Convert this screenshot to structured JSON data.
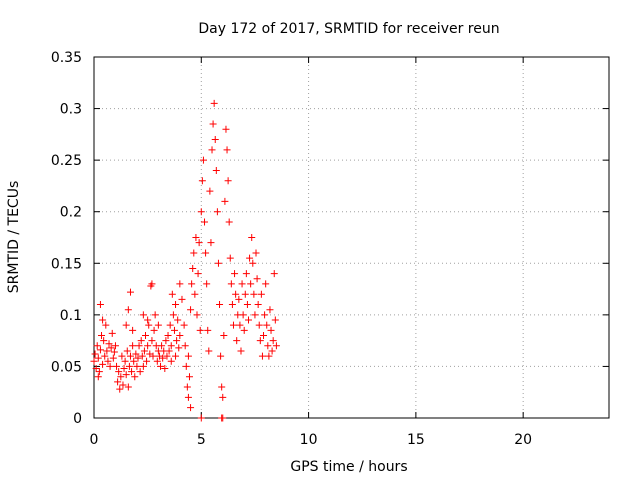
{
  "chart_data": {
    "type": "scatter",
    "title": "Day 172 of 2017, SRMTID for receiver reun",
    "xlabel": "GPS time / hours",
    "ylabel": "SRMTID / TECUs",
    "xlim": [
      0,
      24
    ],
    "ylim": [
      0,
      0.35
    ],
    "xticks": [
      0,
      5,
      10,
      15,
      20
    ],
    "yticks": [
      0,
      0.05,
      0.1,
      0.15,
      0.2,
      0.25,
      0.3,
      0.35
    ],
    "xtick_labels": [
      "0",
      "5",
      "10",
      "15",
      "20"
    ],
    "ytick_labels": [
      "0",
      "0.05",
      "0.1",
      "0.15",
      "0.2",
      "0.25",
      "0.3",
      "0.35"
    ],
    "grid": true,
    "marker": "+",
    "marker_color": "#ff0000",
    "series": [
      {
        "name": "SRMTID",
        "points": [
          [
            0.0,
            0.055
          ],
          [
            0.05,
            0.062
          ],
          [
            0.1,
            0.048
          ],
          [
            0.15,
            0.07
          ],
          [
            0.2,
            0.058
          ],
          [
            0.25,
            0.045
          ],
          [
            0.3,
            0.066
          ],
          [
            0.35,
            0.08
          ],
          [
            0.4,
            0.052
          ],
          [
            0.45,
            0.075
          ],
          [
            0.5,
            0.06
          ],
          [
            0.55,
            0.09
          ],
          [
            0.6,
            0.065
          ],
          [
            0.65,
            0.055
          ],
          [
            0.7,
            0.072
          ],
          [
            0.75,
            0.05
          ],
          [
            0.8,
            0.068
          ],
          [
            0.85,
            0.082
          ],
          [
            0.9,
            0.058
          ],
          [
            0.95,
            0.064
          ],
          [
            1.0,
            0.07
          ],
          [
            0.3,
            0.11
          ],
          [
            0.4,
            0.095
          ],
          [
            0.2,
            0.04
          ],
          [
            1.05,
            0.05
          ],
          [
            1.1,
            0.035
          ],
          [
            1.15,
            0.045
          ],
          [
            1.2,
            0.028
          ],
          [
            1.25,
            0.04
          ],
          [
            1.3,
            0.06
          ],
          [
            1.35,
            0.032
          ],
          [
            1.4,
            0.048
          ],
          [
            1.45,
            0.055
          ],
          [
            1.5,
            0.042
          ],
          [
            1.55,
            0.065
          ],
          [
            1.6,
            0.03
          ],
          [
            1.65,
            0.05
          ],
          [
            1.7,
            0.06
          ],
          [
            1.75,
            0.045
          ],
          [
            1.8,
            0.07
          ],
          [
            1.85,
            0.055
          ],
          [
            1.9,
            0.04
          ],
          [
            1.95,
            0.062
          ],
          [
            2.0,
            0.05
          ],
          [
            1.5,
            0.09
          ],
          [
            1.6,
            0.105
          ],
          [
            1.7,
            0.122
          ],
          [
            1.8,
            0.085
          ],
          [
            2.05,
            0.058
          ],
          [
            2.1,
            0.07
          ],
          [
            2.15,
            0.045
          ],
          [
            2.2,
            0.075
          ],
          [
            2.25,
            0.06
          ],
          [
            2.3,
            0.05
          ],
          [
            2.35,
            0.065
          ],
          [
            2.4,
            0.08
          ],
          [
            2.45,
            0.055
          ],
          [
            2.5,
            0.07
          ],
          [
            2.55,
            0.09
          ],
          [
            2.6,
            0.062
          ],
          [
            2.65,
            0.128
          ],
          [
            2.7,
            0.075
          ],
          [
            2.75,
            0.06
          ],
          [
            2.8,
            0.085
          ],
          [
            2.85,
            0.1
          ],
          [
            2.9,
            0.07
          ],
          [
            2.95,
            0.055
          ],
          [
            3.0,
            0.065
          ],
          [
            2.3,
            0.1
          ],
          [
            2.5,
            0.095
          ],
          [
            2.7,
            0.13
          ],
          [
            3.0,
            0.09
          ],
          [
            3.05,
            0.06
          ],
          [
            3.1,
            0.05
          ],
          [
            3.15,
            0.07
          ],
          [
            3.2,
            0.058
          ],
          [
            3.25,
            0.065
          ],
          [
            3.3,
            0.048
          ],
          [
            3.35,
            0.075
          ],
          [
            3.4,
            0.06
          ],
          [
            3.45,
            0.08
          ],
          [
            3.5,
            0.065
          ],
          [
            3.55,
            0.09
          ],
          [
            3.6,
            0.07
          ],
          [
            3.65,
            0.12
          ],
          [
            3.7,
            0.1
          ],
          [
            3.75,
            0.085
          ],
          [
            3.8,
            0.11
          ],
          [
            3.85,
            0.075
          ],
          [
            3.9,
            0.095
          ],
          [
            3.95,
            0.068
          ],
          [
            4.0,
            0.08
          ],
          [
            3.6,
            0.055
          ],
          [
            3.8,
            0.06
          ],
          [
            4.0,
            0.13
          ],
          [
            4.1,
            0.115
          ],
          [
            4.2,
            0.09
          ],
          [
            4.25,
            0.07
          ],
          [
            4.3,
            0.05
          ],
          [
            4.35,
            0.03
          ],
          [
            4.4,
            0.02
          ],
          [
            4.45,
            0.04
          ],
          [
            4.5,
            0.01
          ],
          [
            4.4,
            0.06
          ],
          [
            4.5,
            0.105
          ],
          [
            4.55,
            0.13
          ],
          [
            4.6,
            0.145
          ],
          [
            4.65,
            0.16
          ],
          [
            4.7,
            0.12
          ],
          [
            4.75,
            0.175
          ],
          [
            4.8,
            0.1
          ],
          [
            4.85,
            0.14
          ],
          [
            4.9,
            0.17
          ],
          [
            4.95,
            0.085
          ],
          [
            5.0,
            0.2
          ],
          [
            5.05,
            0.23
          ],
          [
            5.1,
            0.25
          ],
          [
            5.15,
            0.19
          ],
          [
            5.2,
            0.16
          ],
          [
            5.25,
            0.13
          ],
          [
            5.3,
            0.085
          ],
          [
            5.35,
            0.065
          ],
          [
            5.4,
            0.22
          ],
          [
            5.45,
            0.17
          ],
          [
            5.5,
            0.26
          ],
          [
            5.55,
            0.285
          ],
          [
            5.6,
            0.305
          ],
          [
            5.65,
            0.27
          ],
          [
            5.7,
            0.24
          ],
          [
            5.75,
            0.2
          ],
          [
            5.8,
            0.15
          ],
          [
            5.85,
            0.11
          ],
          [
            5.9,
            0.06
          ],
          [
            5.95,
            0.03
          ],
          [
            6.0,
            0.02
          ],
          [
            5.0,
            0.0
          ],
          [
            5.95,
            0.0
          ],
          [
            6.0,
            0.0
          ],
          [
            6.05,
            0.08
          ],
          [
            6.1,
            0.21
          ],
          [
            6.15,
            0.28
          ],
          [
            6.2,
            0.26
          ],
          [
            6.25,
            0.23
          ],
          [
            6.3,
            0.19
          ],
          [
            6.35,
            0.155
          ],
          [
            6.4,
            0.13
          ],
          [
            6.45,
            0.11
          ],
          [
            6.5,
            0.09
          ],
          [
            6.55,
            0.14
          ],
          [
            6.6,
            0.12
          ],
          [
            6.65,
            0.075
          ],
          [
            6.7,
            0.1
          ],
          [
            6.75,
            0.115
          ],
          [
            6.8,
            0.09
          ],
          [
            6.85,
            0.065
          ],
          [
            6.9,
            0.13
          ],
          [
            6.95,
            0.1
          ],
          [
            7.0,
            0.085
          ],
          [
            7.05,
            0.12
          ],
          [
            7.1,
            0.14
          ],
          [
            7.15,
            0.11
          ],
          [
            7.2,
            0.095
          ],
          [
            7.25,
            0.155
          ],
          [
            7.3,
            0.13
          ],
          [
            7.35,
            0.175
          ],
          [
            7.4,
            0.15
          ],
          [
            7.45,
            0.12
          ],
          [
            7.5,
            0.1
          ],
          [
            7.55,
            0.16
          ],
          [
            7.6,
            0.135
          ],
          [
            7.65,
            0.11
          ],
          [
            7.7,
            0.09
          ],
          [
            7.75,
            0.075
          ],
          [
            7.8,
            0.12
          ],
          [
            7.85,
            0.06
          ],
          [
            7.9,
            0.08
          ],
          [
            7.95,
            0.1
          ],
          [
            8.0,
            0.13
          ],
          [
            8.05,
            0.09
          ],
          [
            8.1,
            0.07
          ],
          [
            8.15,
            0.06
          ],
          [
            8.2,
            0.105
          ],
          [
            8.25,
            0.085
          ],
          [
            8.3,
            0.065
          ],
          [
            8.35,
            0.075
          ],
          [
            8.4,
            0.14
          ],
          [
            8.45,
            0.095
          ],
          [
            8.5,
            0.07
          ]
        ]
      }
    ]
  }
}
